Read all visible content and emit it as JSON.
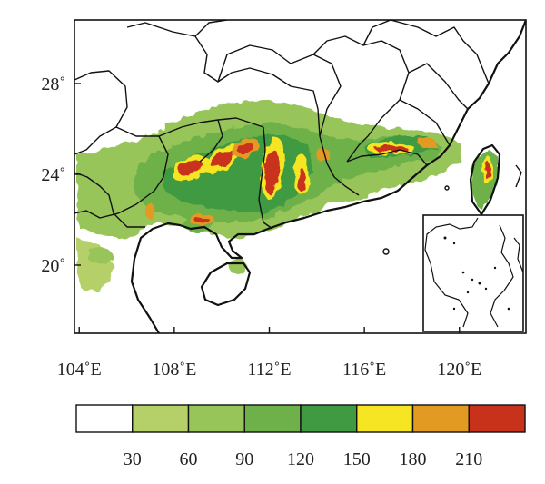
{
  "map": {
    "x_axis": {
      "ticks": [
        {
          "lon": 104,
          "label": "104˚E"
        },
        {
          "lon": 108,
          "label": "108˚E"
        },
        {
          "lon": 112,
          "label": "112˚E"
        },
        {
          "lon": 116,
          "label": "116˚E"
        },
        {
          "lon": 120,
          "label": "120˚E"
        }
      ],
      "range": [
        103.8,
        122.8
      ]
    },
    "y_axis": {
      "ticks": [
        {
          "lat": 20,
          "label": "20˚"
        },
        {
          "lat": 24,
          "label": "24˚"
        },
        {
          "lat": 28,
          "label": "28˚"
        }
      ],
      "range": [
        17.0,
        30.8
      ]
    },
    "colors": {
      "water": "#ffffff",
      "boundary": "#111111"
    },
    "legend": {
      "bins": [
        {
          "color": "#ffffff"
        },
        {
          "color": "#b5d068"
        },
        {
          "color": "#98c55a"
        },
        {
          "color": "#6eb14a"
        },
        {
          "color": "#3f9a42"
        },
        {
          "color": "#f5e522"
        },
        {
          "color": "#e39a22"
        },
        {
          "color": "#c9321a"
        }
      ],
      "labels": [
        "30",
        "60",
        "90",
        "120",
        "150",
        "180",
        "210"
      ]
    }
  }
}
